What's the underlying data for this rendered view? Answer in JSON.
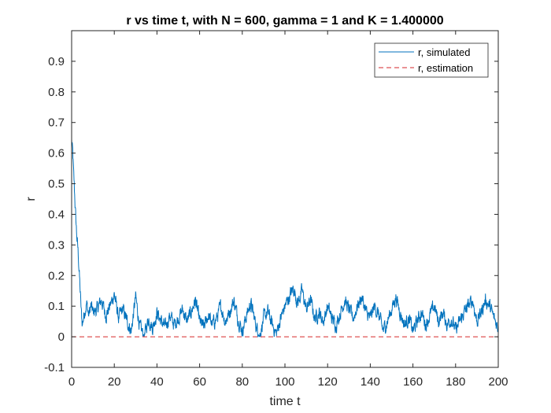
{
  "chart_data": {
    "type": "line",
    "title": "r vs time t, with N = 600, gamma = 1 and K = 1.400000",
    "xlabel": "time t",
    "ylabel": "r",
    "xlim": [
      0,
      200
    ],
    "ylim": [
      -0.1,
      1.0
    ],
    "xticks": [
      "0",
      "20",
      "40",
      "60",
      "80",
      "100",
      "120",
      "140",
      "160",
      "180",
      "200"
    ],
    "yticks": [
      "-0.1",
      "0",
      "0.1",
      "0.2",
      "0.3",
      "0.4",
      "0.5",
      "0.6",
      "0.7",
      "0.8",
      "0.9"
    ],
    "grid": false,
    "legend_position": "top-right",
    "series": [
      {
        "name": "r, simulated",
        "color": "#0072BD",
        "style": "solid",
        "x": [
          0,
          0.5,
          1,
          1.5,
          2,
          2.5,
          3,
          3.5,
          4,
          4.5,
          5,
          6,
          7,
          8,
          9,
          10,
          12,
          14,
          16,
          18,
          20,
          22,
          24,
          26,
          28,
          30,
          32,
          34,
          36,
          38,
          40,
          42,
          44,
          46,
          48,
          50,
          52,
          54,
          56,
          58,
          60,
          62,
          64,
          66,
          68,
          70,
          72,
          74,
          76,
          78,
          80,
          82,
          84,
          86,
          88,
          90,
          92,
          94,
          96,
          98,
          100,
          102,
          104,
          106,
          108,
          110,
          112,
          114,
          116,
          118,
          120,
          122,
          124,
          126,
          128,
          130,
          132,
          134,
          136,
          138,
          140,
          142,
          144,
          146,
          148,
          150,
          152,
          154,
          156,
          158,
          160,
          162,
          164,
          166,
          168,
          170,
          172,
          174,
          176,
          178,
          180,
          182,
          184,
          186,
          188,
          190,
          192,
          194,
          196,
          198,
          200
        ],
        "y": [
          0.64,
          0.6,
          0.52,
          0.45,
          0.38,
          0.32,
          0.28,
          0.22,
          0.15,
          0.08,
          0.04,
          0.08,
          0.11,
          0.07,
          0.1,
          0.08,
          0.09,
          0.12,
          0.07,
          0.1,
          0.14,
          0.06,
          0.09,
          0.05,
          0.02,
          0.13,
          0.03,
          0.0,
          0.06,
          0.03,
          0.08,
          0.05,
          0.03,
          0.07,
          0.04,
          0.06,
          0.09,
          0.05,
          0.08,
          0.12,
          0.05,
          0.03,
          0.07,
          0.04,
          0.06,
          0.1,
          0.05,
          0.08,
          0.12,
          0.06,
          0.02,
          0.07,
          0.11,
          0.05,
          0.0,
          0.06,
          0.08,
          0.04,
          0.01,
          0.06,
          0.1,
          0.13,
          0.16,
          0.11,
          0.15,
          0.09,
          0.12,
          0.06,
          0.08,
          0.05,
          0.1,
          0.06,
          0.04,
          0.08,
          0.12,
          0.09,
          0.06,
          0.1,
          0.13,
          0.08,
          0.06,
          0.1,
          0.07,
          0.02,
          0.05,
          0.09,
          0.13,
          0.08,
          0.04,
          0.06,
          0.02,
          0.05,
          0.08,
          0.04,
          0.07,
          0.1,
          0.05,
          0.08,
          0.04,
          0.06,
          0.02,
          0.05,
          0.08,
          0.1,
          0.12,
          0.05,
          0.08,
          0.12,
          0.1,
          0.06,
          0.03
        ]
      },
      {
        "name": "r, estimation",
        "color": "#D62728",
        "style": "dashed",
        "x": [
          0,
          200
        ],
        "y": [
          0,
          0
        ]
      }
    ]
  }
}
